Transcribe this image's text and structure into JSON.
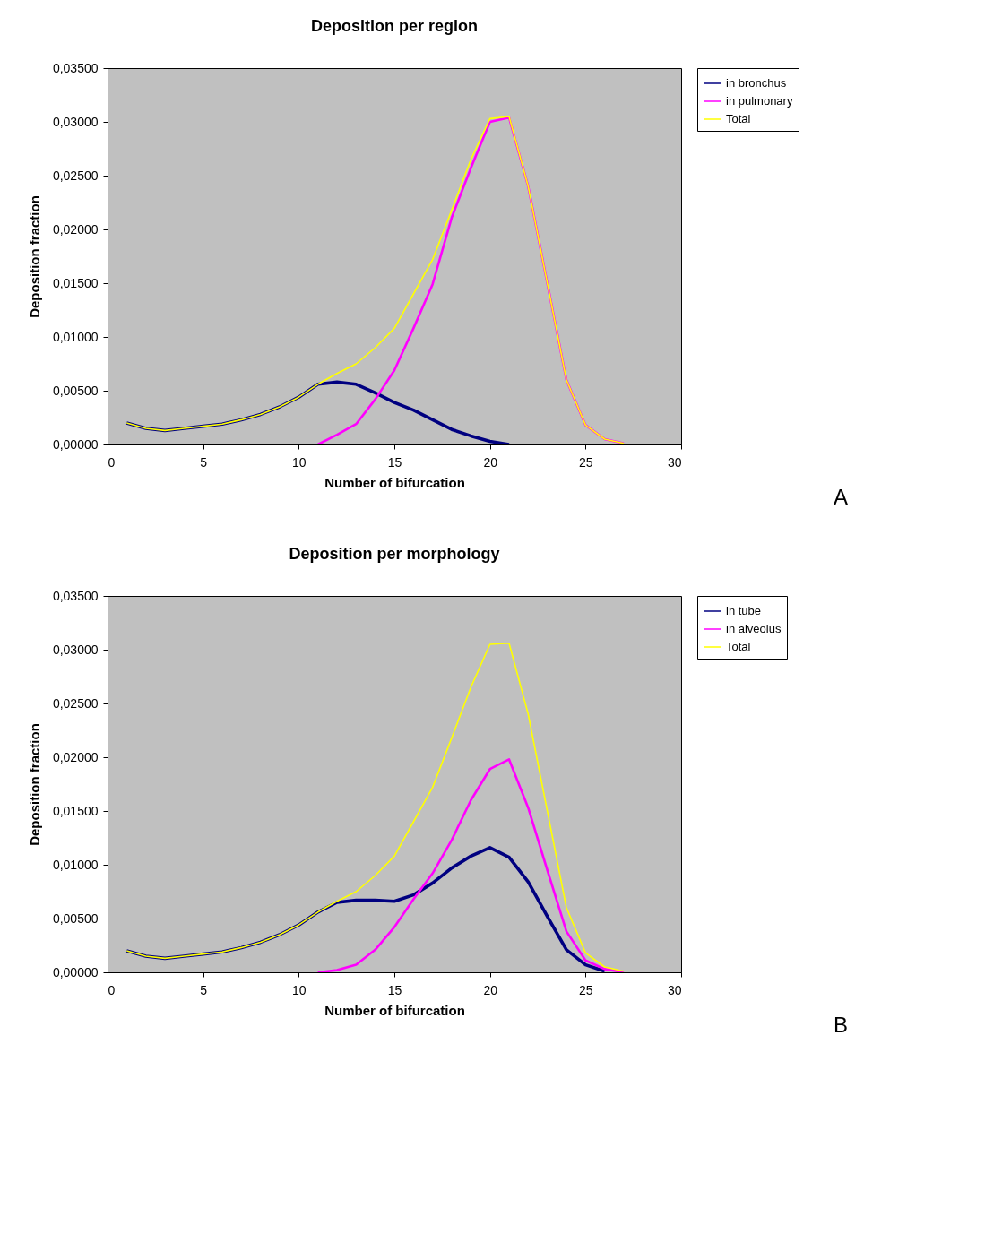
{
  "chart_data": [
    {
      "type": "line",
      "title": "Deposition per region",
      "xlabel": "Number of bifurcation",
      "ylabel": "Deposition fraction",
      "annotations": [
        "A"
      ],
      "xlim": [
        0,
        30
      ],
      "xticks": [
        0,
        5,
        10,
        15,
        20,
        25,
        30
      ],
      "ylim": [
        0,
        0.035
      ],
      "yticks": [
        {
          "value": 0,
          "label": "0,00000"
        },
        {
          "value": 0.005,
          "label": "0,00500"
        },
        {
          "value": 0.01,
          "label": "0,01000"
        },
        {
          "value": 0.015,
          "label": "0,01500"
        },
        {
          "value": 0.02,
          "label": "0,02000"
        },
        {
          "value": 0.025,
          "label": "0,02500"
        },
        {
          "value": 0.03,
          "label": "0,03000"
        },
        {
          "value": 0.035,
          "label": "0,03500"
        }
      ],
      "grid": false,
      "legend": "right",
      "marker": "none",
      "line_style": "solid",
      "series": [
        {
          "name": "in bronchus",
          "color": "#000080",
          "x": [
            1,
            2,
            3,
            4,
            5,
            6,
            7,
            8,
            9,
            10,
            11,
            12,
            13,
            14,
            15,
            16,
            17,
            18,
            19,
            20,
            21
          ],
          "values": [
            0.002,
            0.0015,
            0.0013,
            0.0015,
            0.0017,
            0.0019,
            0.0023,
            0.0028,
            0.0035,
            0.0044,
            0.0056,
            0.0058,
            0.0056,
            0.0048,
            0.0039,
            0.0032,
            0.0023,
            0.0014,
            0.0008,
            0.0003,
            0.0
          ]
        },
        {
          "name": "in pulmonary",
          "color": "#ff00ff",
          "x": [
            11,
            12,
            13,
            14,
            15,
            16,
            17,
            18,
            19,
            20,
            21,
            22,
            23,
            24,
            25,
            26,
            27
          ],
          "values": [
            0.0,
            0.0009,
            0.0019,
            0.0042,
            0.0069,
            0.0108,
            0.0149,
            0.0211,
            0.0257,
            0.03,
            0.0304,
            0.024,
            0.015,
            0.006,
            0.0018,
            0.0005,
            0.0001
          ]
        },
        {
          "name": "Total",
          "color": "#ffff00",
          "x": [
            1,
            2,
            3,
            4,
            5,
            6,
            7,
            8,
            9,
            10,
            11,
            12,
            13,
            14,
            15,
            16,
            17,
            18,
            19,
            20,
            21,
            22,
            23,
            24,
            25,
            26,
            27
          ],
          "values": [
            0.002,
            0.0015,
            0.0013,
            0.0015,
            0.0017,
            0.0019,
            0.0023,
            0.0028,
            0.0035,
            0.0044,
            0.0056,
            0.0066,
            0.0075,
            0.009,
            0.0108,
            0.014,
            0.0172,
            0.0218,
            0.0265,
            0.0303,
            0.0305,
            0.024,
            0.015,
            0.006,
            0.0018,
            0.0005,
            0.0001
          ]
        }
      ]
    },
    {
      "type": "line",
      "title": "Deposition per morphology",
      "xlabel": "Number of bifurcation",
      "ylabel": "Deposition fraction",
      "annotations": [
        "B"
      ],
      "xlim": [
        0,
        30
      ],
      "xticks": [
        0,
        5,
        10,
        15,
        20,
        25,
        30
      ],
      "ylim": [
        0,
        0.035
      ],
      "yticks": [
        {
          "value": 0,
          "label": "0,00000"
        },
        {
          "value": 0.005,
          "label": "0,00500"
        },
        {
          "value": 0.01,
          "label": "0,01000"
        },
        {
          "value": 0.015,
          "label": "0,01500"
        },
        {
          "value": 0.02,
          "label": "0,02000"
        },
        {
          "value": 0.025,
          "label": "0,02500"
        },
        {
          "value": 0.03,
          "label": "0,03000"
        },
        {
          "value": 0.035,
          "label": "0,03500"
        }
      ],
      "grid": false,
      "legend": "right",
      "marker": "none",
      "line_style": "solid",
      "series": [
        {
          "name": "in tube",
          "color": "#000080",
          "x": [
            1,
            2,
            3,
            4,
            5,
            6,
            7,
            8,
            9,
            10,
            11,
            12,
            13,
            14,
            15,
            16,
            17,
            18,
            19,
            20,
            21,
            22,
            23,
            24,
            25,
            26
          ],
          "values": [
            0.002,
            0.0015,
            0.0013,
            0.0015,
            0.0017,
            0.0019,
            0.0023,
            0.0028,
            0.0035,
            0.0044,
            0.0056,
            0.0065,
            0.0067,
            0.0067,
            0.0066,
            0.0072,
            0.0083,
            0.0097,
            0.0108,
            0.0116,
            0.0107,
            0.0084,
            0.0052,
            0.0021,
            0.0007,
            0.0001
          ]
        },
        {
          "name": "in alveolus",
          "color": "#ff00ff",
          "x": [
            11,
            12,
            13,
            14,
            15,
            16,
            17,
            18,
            19,
            20,
            21,
            22,
            23,
            24,
            25,
            26,
            27
          ],
          "values": [
            0.0,
            0.0002,
            0.0007,
            0.0021,
            0.0042,
            0.0068,
            0.0092,
            0.0123,
            0.016,
            0.0189,
            0.0198,
            0.0153,
            0.0095,
            0.0038,
            0.0011,
            0.0003,
            0.0
          ]
        },
        {
          "name": "Total",
          "color": "#ffff00",
          "x": [
            1,
            2,
            3,
            4,
            5,
            6,
            7,
            8,
            9,
            10,
            11,
            12,
            13,
            14,
            15,
            16,
            17,
            18,
            19,
            20,
            21,
            22,
            23,
            24,
            25,
            26,
            27
          ],
          "values": [
            0.002,
            0.0015,
            0.0013,
            0.0015,
            0.0017,
            0.0019,
            0.0023,
            0.0028,
            0.0035,
            0.0044,
            0.0056,
            0.0066,
            0.0075,
            0.009,
            0.0108,
            0.014,
            0.0172,
            0.0218,
            0.0265,
            0.0305,
            0.0306,
            0.024,
            0.015,
            0.006,
            0.0018,
            0.0005,
            0.0001
          ]
        }
      ]
    }
  ]
}
